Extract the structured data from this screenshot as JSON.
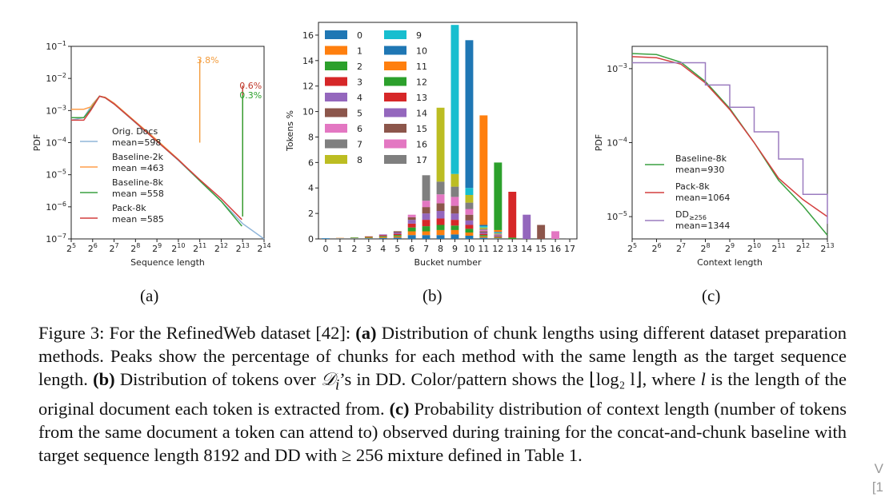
{
  "subfigure_labels": [
    "(a)",
    "(b)",
    "(c)"
  ],
  "caption": {
    "figure_label": "Figure 3:",
    "lead": "For the RefinedWeb dataset [42]:",
    "a_label": "(a)",
    "a_text": "Distribution of chunk lengths using different dataset preparation methods. Peaks show the percentage of chunks for each method with the same length as the target sequence length.",
    "b_label": "(b)",
    "b_text_1": "Distribution of tokens over",
    "b_symbol": "𝒟",
    "b_subscript": "i",
    "b_text_2": "’s in DD. Color/pattern shows the",
    "b_formula": "⌊log₂ l⌋",
    "b_text_3": ", where",
    "b_var": "l",
    "b_text_4": "is the length of the original document each token is extracted from.",
    "c_label": "(c)",
    "c_text": "Probability distribution of context length (number of tokens from the same document a token can attend to) observed during training for the concat-and-chunk baseline with target sequence length 8192 and DD with ≥ 256 mixture defined in Table 1."
  },
  "edge_text": [
    "V",
    "[1"
  ],
  "chart_data": [
    {
      "type": "line",
      "panel": "(a)",
      "title": "",
      "xlabel": "Sequence length",
      "ylabel": "PDF",
      "xscale": "log2",
      "yscale": "log10",
      "xlim": [
        32,
        16384
      ],
      "ylim": [
        1e-07,
        0.1
      ],
      "x_ticks": [
        {
          "t": "2",
          "e": "5"
        },
        {
          "t": "2",
          "e": "6"
        },
        {
          "t": "2",
          "e": "7"
        },
        {
          "t": "2",
          "e": "8"
        },
        {
          "t": "2",
          "e": "9"
        },
        {
          "t": "2",
          "e": "10"
        },
        {
          "t": "2",
          "e": "11"
        },
        {
          "t": "2",
          "e": "12"
        },
        {
          "t": "2",
          "e": "13"
        },
        {
          "t": "2",
          "e": "14"
        }
      ],
      "y_ticks": [
        {
          "t": "10",
          "e": "−1"
        },
        {
          "t": "10",
          "e": "−2"
        },
        {
          "t": "10",
          "e": "−3"
        },
        {
          "t": "10",
          "e": "−4"
        },
        {
          "t": "10",
          "e": "−5"
        },
        {
          "t": "10",
          "e": "−6"
        },
        {
          "t": "10",
          "e": "−7"
        }
      ],
      "legend_position": "lower-left",
      "series": [
        {
          "name": "Orig. Docs",
          "stat": "mean=598",
          "color": "#8fb5d9",
          "points": [
            [
              32,
              0.0005
            ],
            [
              48,
              0.0006
            ],
            [
              64,
              0.0016
            ],
            [
              80,
              0.0028
            ],
            [
              96,
              0.0025
            ],
            [
              128,
              0.0016
            ],
            [
              256,
              0.00042
            ],
            [
              512,
              0.00011
            ],
            [
              1024,
              2.8e-05
            ],
            [
              2048,
              6.5e-06
            ],
            [
              4096,
              1.5e-06
            ],
            [
              8192,
              3e-07
            ],
            [
              16384,
              1e-07
            ]
          ]
        },
        {
          "name": "Baseline-2k",
          "stat": "mean =463",
          "color": "#ff9e4a",
          "points": [
            [
              32,
              0.0011
            ],
            [
              48,
              0.0011
            ],
            [
              60,
              0.0013
            ],
            [
              80,
              0.0028
            ],
            [
              96,
              0.0026
            ],
            [
              128,
              0.0017
            ],
            [
              256,
              0.00045
            ],
            [
              512,
              0.00012
            ],
            [
              1024,
              3e-05
            ],
            [
              2000,
              7e-06
            ]
          ]
        },
        {
          "name": "Baseline-8k",
          "stat": "mean =558",
          "color": "#3aa040",
          "points": [
            [
              32,
              0.0006
            ],
            [
              48,
              0.0006
            ],
            [
              60,
              0.0011
            ],
            [
              80,
              0.0028
            ],
            [
              96,
              0.0025
            ],
            [
              128,
              0.0016
            ],
            [
              256,
              0.00043
            ],
            [
              512,
              0.00011
            ],
            [
              1024,
              2.9e-05
            ],
            [
              2048,
              6.5e-06
            ],
            [
              4096,
              1.5e-06
            ],
            [
              8000,
              2.5e-07
            ]
          ]
        },
        {
          "name": "Pack-8k",
          "stat": "mean =585",
          "color": "#d43f3f",
          "points": [
            [
              32,
              0.0005
            ],
            [
              48,
              0.0005
            ],
            [
              60,
              0.001
            ],
            [
              80,
              0.0028
            ],
            [
              96,
              0.0025
            ],
            [
              128,
              0.0016
            ],
            [
              256,
              0.00043
            ],
            [
              512,
              0.00011
            ],
            [
              1024,
              2.9e-05
            ],
            [
              2048,
              7e-06
            ],
            [
              4096,
              1.8e-06
            ],
            [
              8000,
              4e-07
            ]
          ]
        }
      ],
      "peaks": [
        {
          "label": "3.8%",
          "color": "#f39c3c",
          "x": 2048,
          "y_top": 0.038,
          "y_base": 0.0001
        },
        {
          "label": "0.6%",
          "color": "#c0392b",
          "x": 8192,
          "y_top": 0.006,
          "y_base": 5e-07
        },
        {
          "label": "0.3%",
          "color": "#2ca02c",
          "x": 8192,
          "y_top": 0.003,
          "y_base": 5e-07
        }
      ]
    },
    {
      "type": "bar",
      "panel": "(b)",
      "title": "",
      "xlabel": "Bucket number",
      "ylabel": "Tokens %",
      "ylim": [
        0,
        17
      ],
      "y_ticks": [
        0,
        2,
        4,
        6,
        8,
        10,
        12,
        14,
        16
      ],
      "categories": [
        "0",
        "1",
        "2",
        "3",
        "4",
        "5",
        "6",
        "7",
        "8",
        "9",
        "10",
        "11",
        "12",
        "13",
        "14",
        "15",
        "16",
        "17"
      ],
      "legend": [
        "0",
        "1",
        "2",
        "3",
        "4",
        "5",
        "6",
        "7",
        "8",
        "9",
        "10",
        "11",
        "12",
        "13",
        "14",
        "15",
        "16",
        "17"
      ],
      "legend_position": "top-left",
      "colors": [
        "#1f77b4",
        "#ff7f0e",
        "#2ca02c",
        "#d62728",
        "#9467bd",
        "#8c564b",
        "#e377c2",
        "#7f7f7f",
        "#bcbd22",
        "#17becf",
        "#1f77b4",
        "#ff7f0e",
        "#2ca02c",
        "#d62728",
        "#9467bd",
        "#8c564b",
        "#e377c2",
        "#7f7f7f"
      ],
      "totals": [
        0.05,
        0.08,
        0.12,
        0.2,
        0.35,
        0.6,
        1.9,
        5.0,
        10.3,
        16.8,
        15.6,
        9.7,
        6.0,
        3.7,
        1.9,
        1.1,
        0.6,
        0.05
      ],
      "values": [
        [
          0.05
        ],
        [
          0.04,
          0.04
        ],
        [
          0.04,
          0.04,
          0.04
        ],
        [
          0.05,
          0.05,
          0.05,
          0.05
        ],
        [
          0.07,
          0.07,
          0.07,
          0.07,
          0.07
        ],
        [
          0.1,
          0.1,
          0.1,
          0.1,
          0.1,
          0.1
        ],
        [
          0.3,
          0.3,
          0.3,
          0.3,
          0.3,
          0.2,
          0.2
        ],
        [
          0.3,
          0.3,
          0.4,
          0.5,
          0.5,
          0.5,
          0.5,
          2.0
        ],
        [
          0.3,
          0.4,
          0.4,
          0.5,
          0.6,
          0.6,
          0.7,
          1.0,
          5.8
        ],
        [
          0.35,
          0.35,
          0.35,
          0.45,
          0.5,
          0.6,
          0.7,
          0.8,
          1.0,
          11.7
        ],
        [
          0.25,
          0.25,
          0.3,
          0.3,
          0.35,
          0.45,
          0.45,
          0.5,
          0.6,
          0.55,
          11.6
        ],
        [
          0.1,
          0.1,
          0.1,
          0.1,
          0.1,
          0.1,
          0.1,
          0.1,
          0.1,
          0.1,
          0.1,
          8.6
        ],
        [
          0.05,
          0.05,
          0.05,
          0.05,
          0.05,
          0.05,
          0.05,
          0.05,
          0.05,
          0.05,
          0.05,
          0.15,
          5.3
        ],
        [
          0,
          0,
          0,
          0,
          0,
          0,
          0,
          0,
          0,
          0,
          0,
          0,
          0.1,
          3.6
        ],
        [
          0,
          0,
          0,
          0,
          0,
          0,
          0,
          0,
          0,
          0,
          0,
          0,
          0,
          0,
          1.9
        ],
        [
          0,
          0,
          0,
          0,
          0,
          0,
          0,
          0,
          0,
          0,
          0,
          0,
          0,
          0,
          0,
          1.1
        ],
        [
          0,
          0,
          0,
          0,
          0,
          0,
          0,
          0,
          0,
          0,
          0,
          0,
          0,
          0,
          0,
          0,
          0.6
        ],
        [
          0,
          0,
          0,
          0,
          0,
          0,
          0,
          0,
          0,
          0,
          0,
          0,
          0,
          0,
          0,
          0,
          0,
          0.05
        ]
      ]
    },
    {
      "type": "line",
      "panel": "(c)",
      "title": "",
      "xlabel": "Context length",
      "ylabel": "PDF",
      "xscale": "log2",
      "yscale": "log10",
      "xlim": [
        32,
        8192
      ],
      "ylim": [
        5e-06,
        0.002
      ],
      "x_ticks": [
        {
          "t": "2",
          "e": "5"
        },
        {
          "t": "2",
          "e": "6"
        },
        {
          "t": "2",
          "e": "7"
        },
        {
          "t": "2",
          "e": "8"
        },
        {
          "t": "2",
          "e": "9"
        },
        {
          "t": "2",
          "e": "10"
        },
        {
          "t": "2",
          "e": "11"
        },
        {
          "t": "2",
          "e": "12"
        },
        {
          "t": "2",
          "e": "13"
        }
      ],
      "y_ticks": [
        {
          "t": "10",
          "e": "−3"
        },
        {
          "t": "10",
          "e": "−4"
        },
        {
          "t": "10",
          "e": "−5"
        }
      ],
      "legend_position": "lower-left",
      "series": [
        {
          "name": "Baseline-8k",
          "stat": "mean=930",
          "color": "#3aa040",
          "style": "line",
          "points": [
            [
              32,
              0.0016
            ],
            [
              64,
              0.00155
            ],
            [
              128,
              0.00122
            ],
            [
              256,
              0.00067
            ],
            [
              512,
              0.00029
            ],
            [
              1024,
              0.0001
            ],
            [
              2048,
              3.1e-05
            ],
            [
              4096,
              1.4e-05
            ],
            [
              8192,
              5.6e-06
            ]
          ]
        },
        {
          "name": "Pack-8k",
          "stat": "mean=1064",
          "color": "#d43f3f",
          "style": "line",
          "points": [
            [
              32,
              0.00145
            ],
            [
              64,
              0.0014
            ],
            [
              128,
              0.00115
            ],
            [
              256,
              0.00064
            ],
            [
              512,
              0.00028
            ],
            [
              1024,
              0.0001
            ],
            [
              2048,
              3.3e-05
            ],
            [
              4096,
              1.7e-05
            ],
            [
              8192,
              1e-05
            ]
          ]
        },
        {
          "name": "DD",
          "name_subscript": "≥256",
          "stat": "mean=1344",
          "color": "#9b7bbf",
          "style": "step",
          "points": [
            [
              32,
              0.0012
            ],
            [
              128,
              0.0012
            ],
            [
              256,
              0.0006
            ],
            [
              512,
              0.0003
            ],
            [
              1024,
              0.00014
            ],
            [
              2048,
              6e-05
            ],
            [
              4096,
              2e-05
            ],
            [
              8192,
              1e-05
            ]
          ]
        }
      ]
    }
  ]
}
